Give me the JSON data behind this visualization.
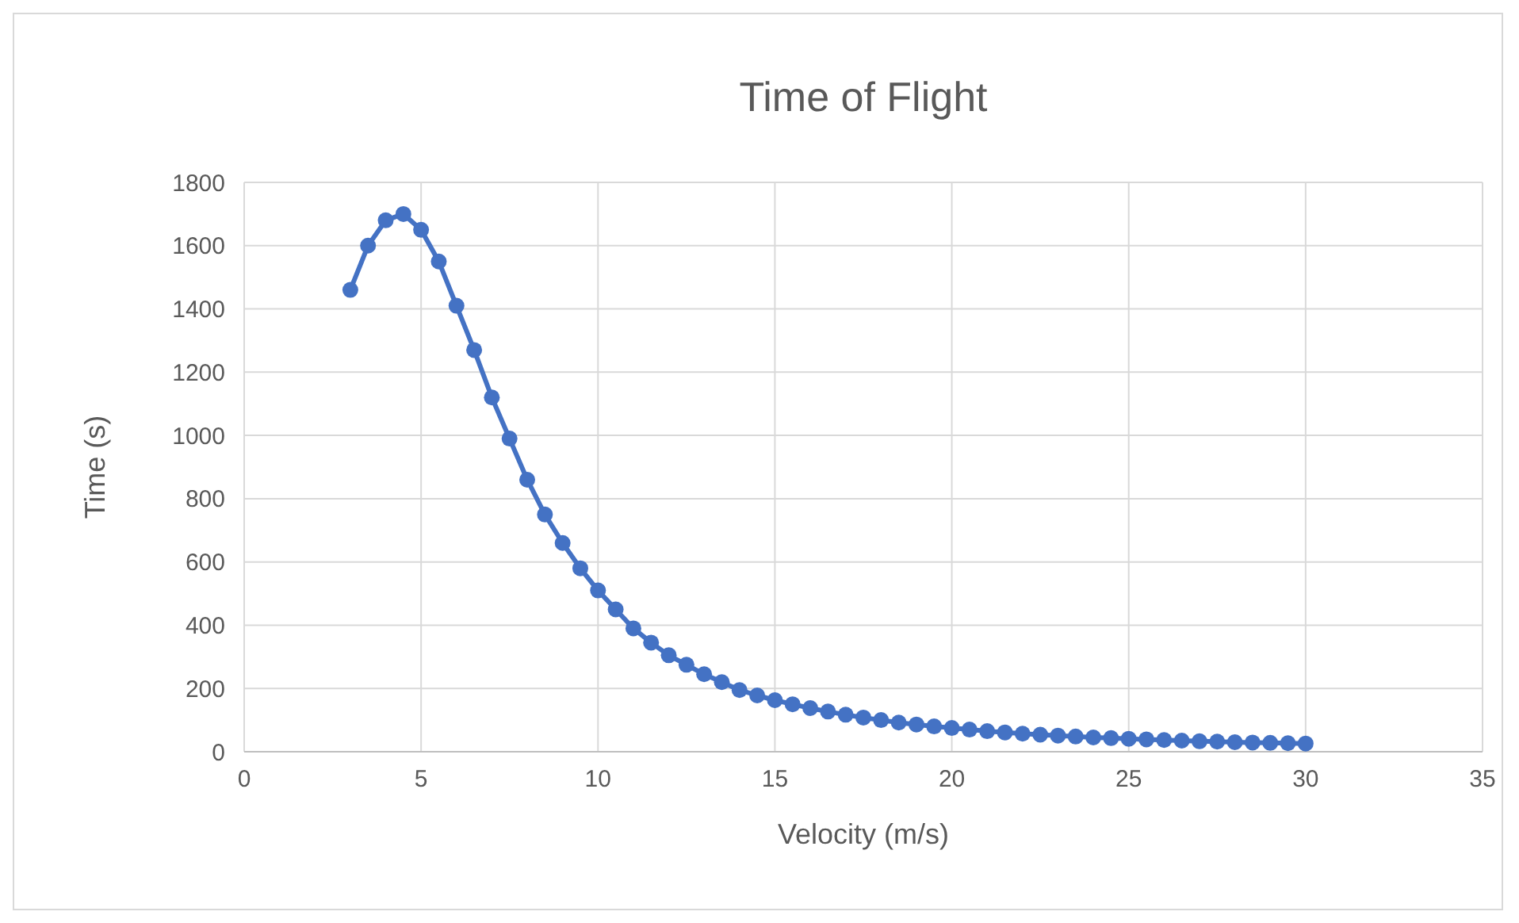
{
  "chart_data": {
    "type": "line",
    "title": "Time of Flight",
    "xlabel": "Velocity (m/s)",
    "ylabel": "Time (s)",
    "xlim": [
      0,
      35
    ],
    "xticks": [
      0,
      5,
      10,
      15,
      20,
      25,
      30,
      35
    ],
    "ylim": [
      0,
      1800
    ],
    "yticks": [
      0,
      200,
      400,
      600,
      800,
      1000,
      1200,
      1400,
      1600,
      1800
    ],
    "grid": true,
    "marker": "circle",
    "line_style": "solid",
    "x": [
      3,
      3.5,
      4,
      4.5,
      5,
      5.5,
      6,
      6.5,
      7,
      7.5,
      8,
      8.5,
      9,
      9.5,
      10,
      10.5,
      11,
      11.5,
      12,
      12.5,
      13,
      13.5,
      14,
      14.5,
      15,
      15.5,
      16,
      16.5,
      17,
      17.5,
      18,
      18.5,
      19,
      19.5,
      20,
      20.5,
      21,
      21.5,
      22,
      22.5,
      23,
      23.5,
      24,
      24.5,
      25,
      25.5,
      26,
      26.5,
      27,
      27.5,
      28,
      28.5,
      29,
      29.5,
      30
    ],
    "series": [
      {
        "color": "#4472c4",
        "values": [
          1460,
          1600,
          1680,
          1700,
          1650,
          1550,
          1410,
          1270,
          1120,
          990,
          860,
          750,
          660,
          580,
          510,
          450,
          390,
          345,
          305,
          275,
          245,
          220,
          195,
          178,
          163,
          150,
          138,
          127,
          117,
          108,
          100,
          92,
          86,
          80,
          75,
          70,
          65,
          61,
          57,
          54,
          51,
          48,
          45,
          43,
          41,
          39,
          37,
          35,
          33,
          32,
          30,
          29,
          28,
          27,
          26
        ]
      }
    ]
  }
}
